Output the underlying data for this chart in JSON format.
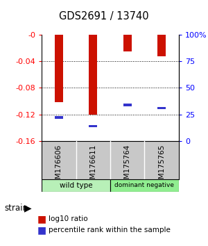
{
  "title": "GDS2691 / 13740",
  "samples": [
    "GSM176606",
    "GSM176611",
    "GSM175764",
    "GSM175765"
  ],
  "log10_ratio": [
    -0.102,
    -0.12,
    -0.025,
    -0.033
  ],
  "percentile_rank": [
    22,
    14,
    34,
    31
  ],
  "ylim": [
    -0.16,
    0.0
  ],
  "yticks_left": [
    0,
    -0.04,
    -0.08,
    -0.12,
    -0.16
  ],
  "yticks_right": [
    0,
    25,
    50,
    75,
    100
  ],
  "bar_color": "#cc1100",
  "blue_color": "#3333cc",
  "legend_red_label": "log10 ratio",
  "legend_blue_label": "percentile rank within the sample",
  "strain_label": "strain",
  "background_plot": "#ffffff",
  "label_area_color": "#c8c8c8",
  "wt_color": "#b8f0b8",
  "dn_color": "#90ee90",
  "bar_width": 0.25
}
